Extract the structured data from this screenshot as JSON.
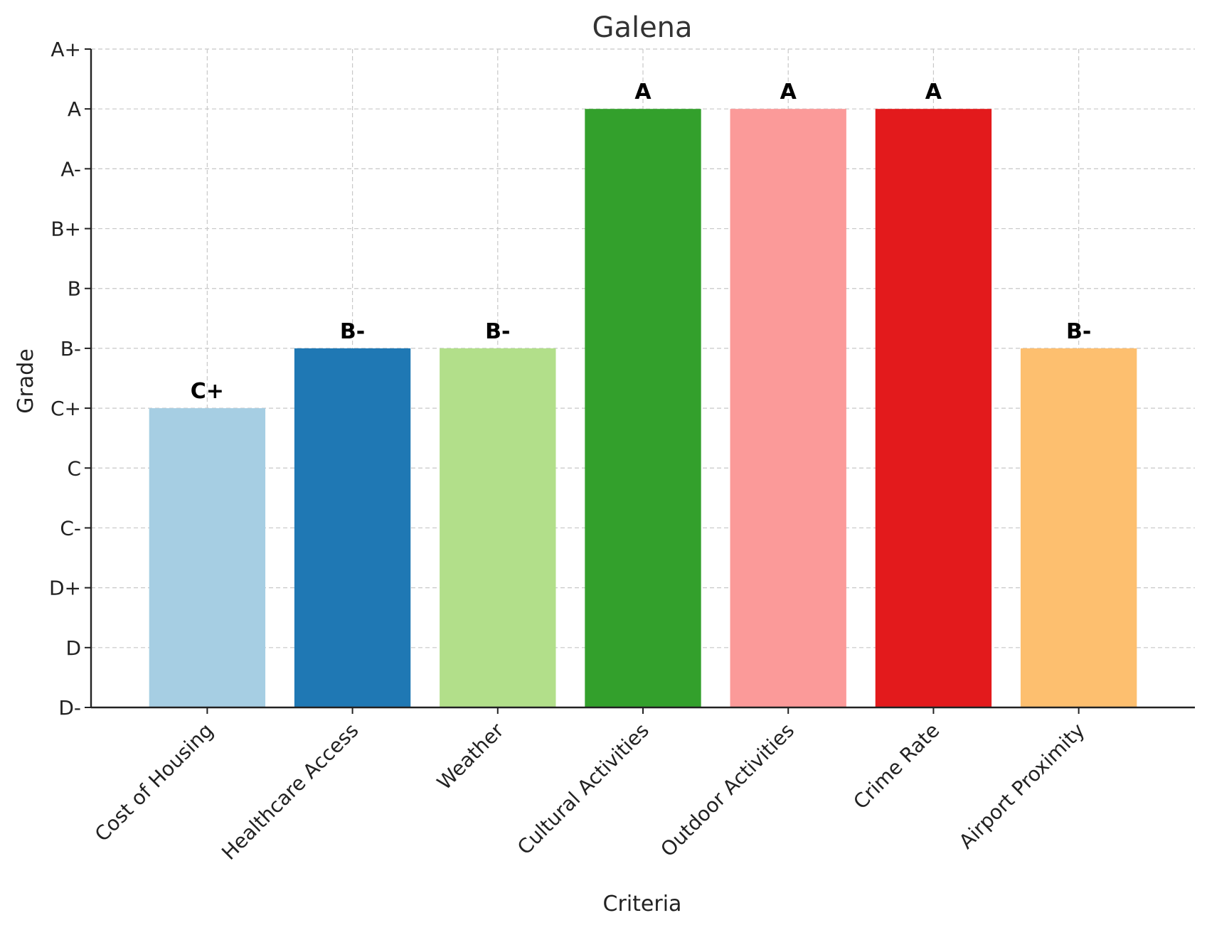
{
  "chart_data": {
    "type": "bar",
    "title": "Galena",
    "xlabel": "Criteria",
    "ylabel": "Grade",
    "grade_scale": [
      "D-",
      "D",
      "D+",
      "C-",
      "C",
      "C+",
      "B-",
      "B",
      "B+",
      "A-",
      "A",
      "A+"
    ],
    "categories": [
      "Cost of Housing",
      "Healthcare Access",
      "Weather",
      "Cultural Activities",
      "Outdoor Activities",
      "Crime Rate",
      "Airport Proximity"
    ],
    "grades": [
      "C+",
      "B-",
      "B-",
      "A",
      "A",
      "A",
      "B-"
    ],
    "values": [
      5,
      6,
      6,
      10,
      10,
      10,
      6
    ],
    "ylim": [
      0,
      11
    ],
    "colors": [
      "#a6cee3",
      "#1f78b4",
      "#b2df8a",
      "#33a02c",
      "#fb9a99",
      "#e31a1c",
      "#fdbf6f"
    ],
    "grid": true,
    "legend": "none"
  }
}
